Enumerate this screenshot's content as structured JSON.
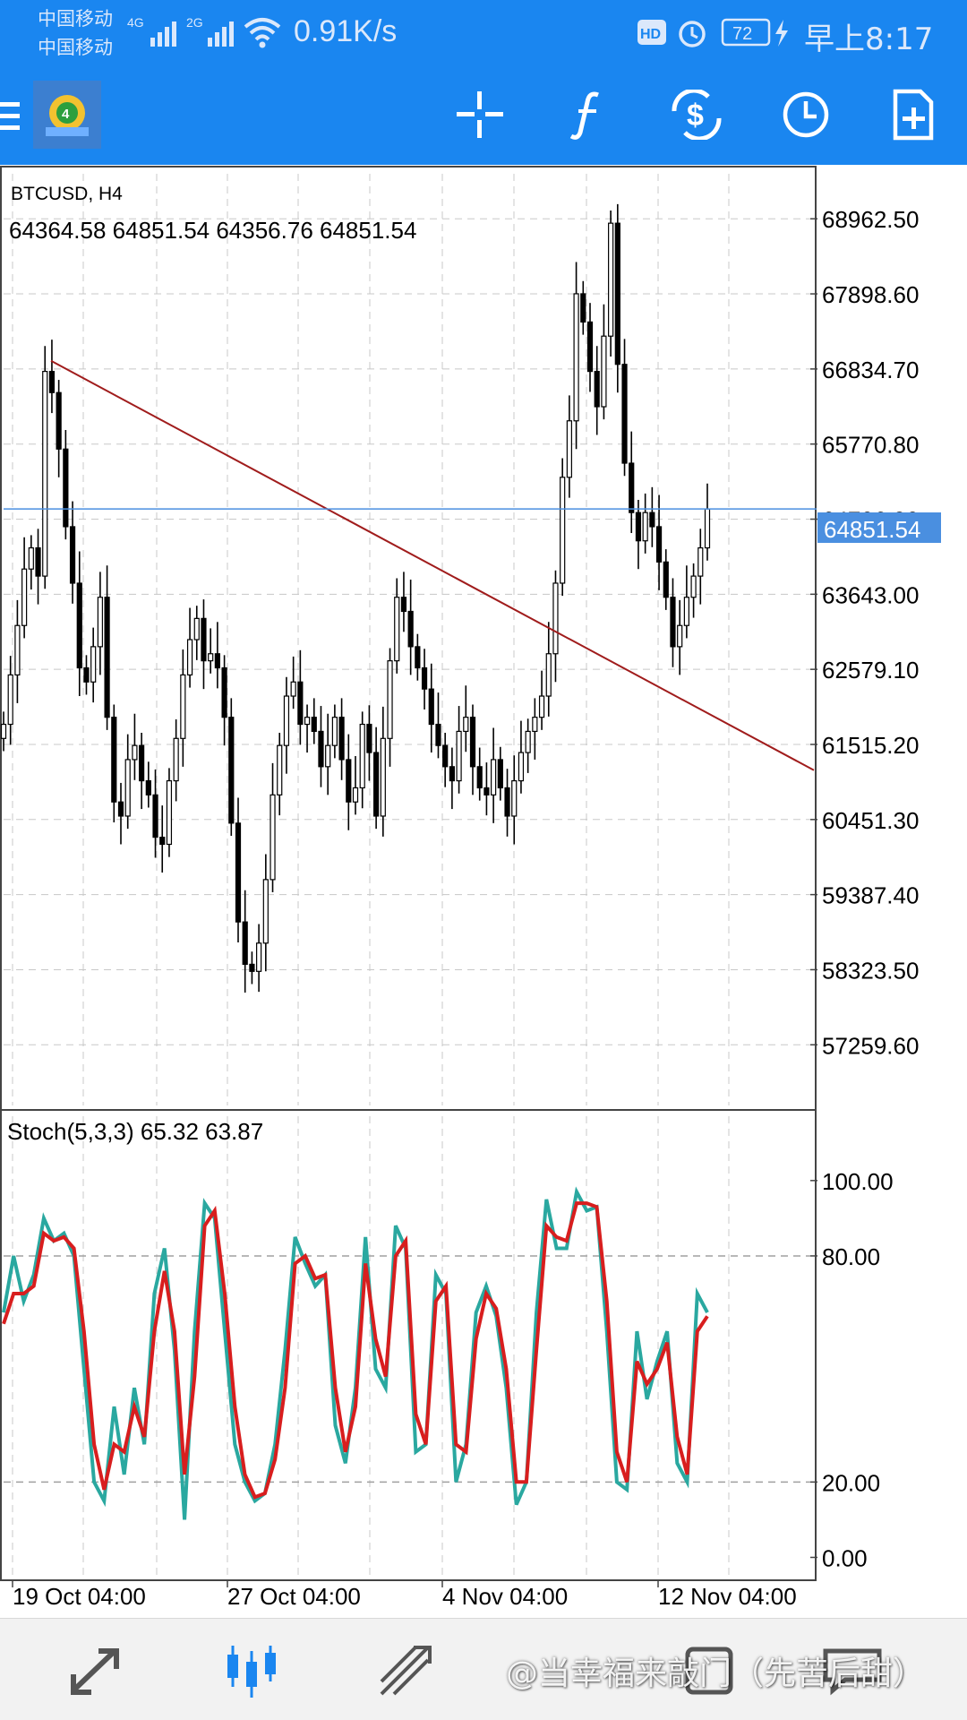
{
  "status_bar": {
    "carrier1": "中国移动",
    "carrier2": "中国移动",
    "net1": "4G",
    "net2": "2G",
    "speed": "0.91K/s",
    "hd": "HD",
    "battery": "72",
    "time": "早上8:17",
    "icons": [
      "signal-icon",
      "wifi-icon",
      "hd-icon",
      "alarm-icon",
      "battery-icon",
      "charging-icon"
    ]
  },
  "toolbar": {
    "icons": [
      "menu-icon",
      "app-logo-icon",
      "crosshair-icon",
      "indicators-icon",
      "trade-icon",
      "timeframe-icon",
      "new-order-icon"
    ]
  },
  "chart": {
    "symbol_label": "BTCUSD, H4",
    "ohlc": "64364.58 64851.54 64356.76 64851.54",
    "current_price": "64851.54",
    "price_labels": [
      "68962.50",
      "67898.60",
      "66834.70",
      "65770.80",
      "64706.90",
      "63643.00",
      "62579.10",
      "61515.20",
      "60451.30",
      "59387.40",
      "58323.50",
      "57259.60"
    ],
    "time_labels": [
      "19 Oct 04:00",
      "27 Oct 04:00",
      "4 Nov 04:00",
      "12 Nov 04:00"
    ],
    "colors": {
      "grid": "#c8c8c8",
      "candle": "#000000",
      "trendline": "#a01c1c",
      "price_line": "#4a8fe0",
      "stoch_k": "#2aa8a0",
      "stoch_d": "#d81e1e"
    }
  },
  "indicator": {
    "label": "Stoch(5,3,3) 65.32 63.87",
    "levels": [
      "100.00",
      "80.00",
      "20.00",
      "0.00"
    ]
  },
  "chart_data": {
    "type": "candlestick",
    "symbol": "BTCUSD",
    "timeframe": "H4",
    "open": 64364.58,
    "high": 64851.54,
    "low": 64356.76,
    "close": 64851.54,
    "ylim": [
      56400,
      69600
    ],
    "closes": [
      61800,
      62500,
      63200,
      64000,
      64300,
      63900,
      66800,
      66500,
      65700,
      64600,
      63800,
      62600,
      62400,
      62900,
      63600,
      61900,
      60700,
      60500,
      61300,
      61500,
      61000,
      60800,
      60200,
      60100,
      61000,
      61600,
      62500,
      63000,
      63300,
      62700,
      62800,
      62600,
      61900,
      60400,
      59000,
      58400,
      58300,
      58700,
      59600,
      60800,
      61500,
      62200,
      62400,
      61800,
      61900,
      61700,
      61200,
      61500,
      61900,
      61300,
      60700,
      60900,
      61800,
      61400,
      60500,
      61600,
      62700,
      63600,
      63400,
      62900,
      62600,
      62300,
      61800,
      61500,
      61200,
      61000,
      61700,
      61900,
      61200,
      60900,
      60800,
      61300,
      60900,
      60500,
      61000,
      61400,
      61700,
      61900,
      62200,
      62800,
      63800,
      65300,
      66100,
      67900,
      67500,
      66800,
      66300,
      67300,
      68900,
      66900,
      65500,
      64800,
      64400,
      64800,
      64600,
      64100,
      63600,
      62900,
      63200,
      63600,
      63900,
      64300,
      64851.54
    ],
    "trendline": [
      {
        "x": "19 Oct",
        "y": 66950
      },
      {
        "x": "14 Nov",
        "y": 61150
      }
    ],
    "indicator": {
      "name": "Stoch(5,3,3)",
      "k_last": 65.32,
      "d_last": 63.87,
      "levels": [
        100,
        80,
        20,
        0
      ],
      "k": [
        65,
        80,
        68,
        75,
        90,
        84,
        86,
        80,
        50,
        20,
        15,
        40,
        22,
        45,
        30,
        70,
        82,
        55,
        10,
        60,
        94,
        90,
        60,
        30,
        20,
        15,
        17,
        30,
        55,
        85,
        78,
        72,
        75,
        35,
        25,
        45,
        85,
        50,
        45,
        88,
        82,
        28,
        30,
        75,
        70,
        20,
        30,
        65,
        72,
        64,
        45,
        14,
        20,
        65,
        95,
        82,
        82,
        97,
        92,
        93,
        60,
        20,
        18,
        60,
        42,
        52,
        60,
        25,
        20,
        70,
        65
      ],
      "d": [
        62,
        70,
        70,
        72,
        86,
        84,
        85,
        82,
        60,
        30,
        18,
        30,
        28,
        40,
        32,
        60,
        76,
        60,
        22,
        48,
        88,
        92,
        70,
        40,
        22,
        16,
        17,
        26,
        45,
        78,
        80,
        74,
        75,
        45,
        28,
        40,
        78,
        58,
        48,
        80,
        84,
        38,
        30,
        68,
        72,
        30,
        28,
        58,
        70,
        66,
        50,
        20,
        20,
        55,
        88,
        85,
        84,
        94,
        94,
        93,
        68,
        28,
        20,
        52,
        46,
        50,
        57,
        32,
        22,
        60,
        64
      ]
    }
  },
  "bottom_nav": {
    "items": [
      "quotes-icon",
      "chart-icon",
      "trade-icon",
      "history-icon",
      "messages-icon"
    ],
    "watermark": "@当幸福来敲门（先苦后甜）"
  }
}
